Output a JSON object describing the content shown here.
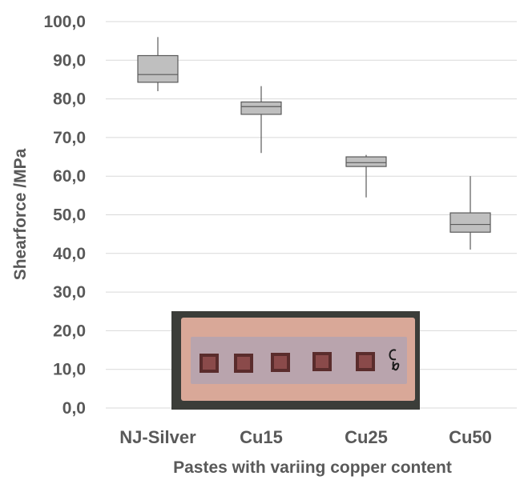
{
  "chart_data": {
    "type": "box",
    "xlabel": "Pastes with variing copper content",
    "ylabel": "Shearforce /MPa",
    "ylim": [
      0,
      100
    ],
    "yticks": [
      "0,0",
      "10,0",
      "20,0",
      "30,0",
      "40,0",
      "50,0",
      "60,0",
      "70,0",
      "80,0",
      "90,0",
      "100,0"
    ],
    "categories": [
      "NJ-Silver",
      "Cu15",
      "Cu25",
      "Cu50"
    ],
    "boxes": [
      {
        "category": "NJ-Silver",
        "min": 82.0,
        "q1": 84.3,
        "median": 86.3,
        "q3": 91.2,
        "max": 96.0
      },
      {
        "category": "Cu15",
        "min": 66.0,
        "q1": 76.0,
        "median": 78.0,
        "q3": 79.2,
        "max": 83.3
      },
      {
        "category": "Cu25",
        "min": 54.5,
        "q1": 62.5,
        "median": 63.5,
        "q3": 65.0,
        "max": 65.5
      },
      {
        "category": "Cu50",
        "min": 41.0,
        "q1": 45.5,
        "median": 47.5,
        "q3": 50.5,
        "max": 60.0
      }
    ],
    "grid": true,
    "colors": {
      "box_fill": "#bfbfbf",
      "outline": "#595959",
      "grid": "#d9d9d9",
      "text": "#595959"
    },
    "inset_photo": {
      "handwritten_mark": "C5"
    }
  }
}
